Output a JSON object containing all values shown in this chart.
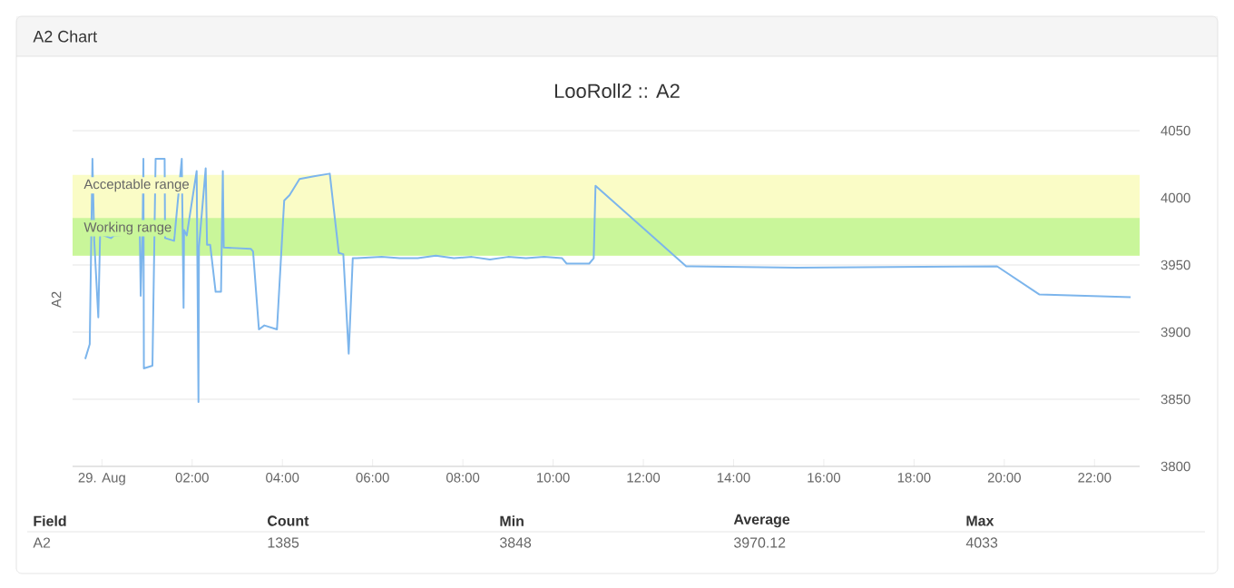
{
  "chart_data": {
    "type": "line",
    "title": "LooRoll2 :: A2",
    "ylabel": "A2",
    "xlim": [
      -0.65,
      23
    ],
    "ylim": [
      3800,
      4050
    ],
    "yticks": [
      3800,
      3850,
      3900,
      3950,
      4000,
      4050
    ],
    "xticks": [
      {
        "value": 0,
        "label": "29. Aug"
      },
      {
        "value": 2,
        "label": "02:00"
      },
      {
        "value": 4,
        "label": "04:00"
      },
      {
        "value": 6,
        "label": "06:00"
      },
      {
        "value": 8,
        "label": "08:00"
      },
      {
        "value": 10,
        "label": "10:00"
      },
      {
        "value": 12,
        "label": "12:00"
      },
      {
        "value": 14,
        "label": "14:00"
      },
      {
        "value": 16,
        "label": "16:00"
      },
      {
        "value": 18,
        "label": "18:00"
      },
      {
        "value": 20,
        "label": "20:00"
      },
      {
        "value": 22,
        "label": "22:00"
      }
    ],
    "grid": "y",
    "line_style": "solid",
    "bands": [
      {
        "axis": "y",
        "from": 3957,
        "to": 4017,
        "label": "Acceptable range",
        "color": "#fafcc6"
      },
      {
        "axis": "y",
        "from": 3957,
        "to": 3985,
        "label": "Working range",
        "color": "#c9f69a"
      }
    ],
    "series": [
      {
        "color": "#7cb5ec",
        "x": [
          -0.37,
          -0.27,
          -0.21,
          -0.17,
          -0.08,
          -0.04,
          0.2,
          0.27,
          0.84,
          0.86,
          0.9,
          0.92,
          0.93,
          1.12,
          1.19,
          1.39,
          1.4,
          1.6,
          1.77,
          1.81,
          1.82,
          1.88,
          2.1,
          2.14,
          2.15,
          2.3,
          2.33,
          2.4,
          2.52,
          2.64,
          2.68,
          2.7,
          3.3,
          3.35,
          3.48,
          3.6,
          3.88,
          4.04,
          4.16,
          4.38,
          4.7,
          5.05,
          5.25,
          5.35,
          5.47,
          5.56,
          5.65,
          6.2,
          6.6,
          7.0,
          7.4,
          7.8,
          8.2,
          8.6,
          9.0,
          9.4,
          9.8,
          10.2,
          10.3,
          10.8,
          10.9,
          10.94,
          12.95,
          15.4,
          19.84,
          20.78,
          22.8
        ],
        "values": [
          3880,
          3891,
          4029,
          3968,
          3911,
          3973,
          3970,
          3972,
          3973,
          3927,
          3973,
          4029,
          3873,
          3875,
          4029,
          4029,
          3970,
          3968,
          4029,
          3918,
          3976,
          3972,
          4020,
          3848,
          3963,
          4022,
          3965,
          3965,
          3930,
          3930,
          4020,
          3963,
          3962,
          3960,
          3902,
          3905,
          3902,
          3998,
          4002,
          4014,
          4016,
          4018,
          3959,
          3958,
          3884,
          3955,
          3955,
          3956,
          3955,
          3955,
          3957,
          3955,
          3956,
          3954,
          3956,
          3955,
          3956,
          3955,
          3951,
          3951,
          3955,
          4009,
          3949,
          3948,
          3949,
          3928,
          3926
        ]
      }
    ],
    "annotations": [
      "A2 Chart",
      "Field",
      "Count",
      "Min",
      "Average",
      "Max",
      "A2",
      "1385",
      "3848",
      "3970.12",
      "4033"
    ]
  }
}
